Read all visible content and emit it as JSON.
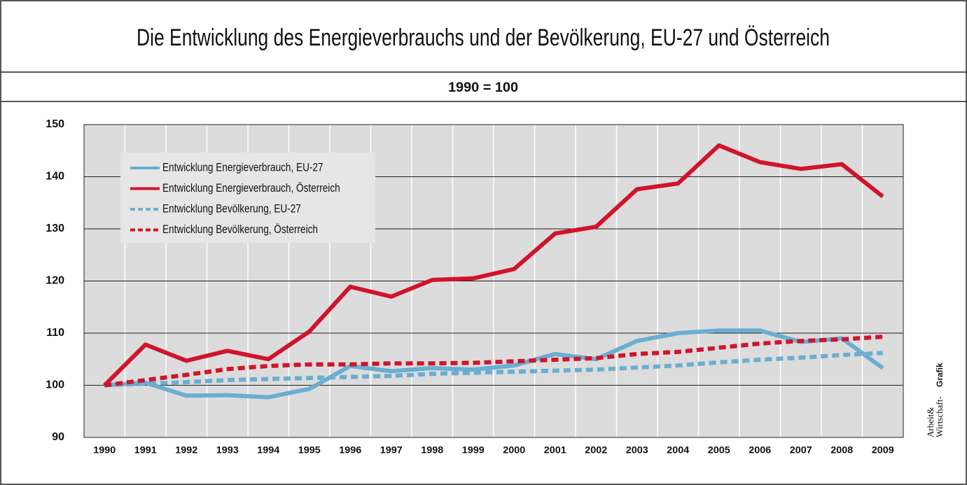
{
  "chart_data": {
    "type": "line",
    "title": "Die Entwicklung des Energieverbrauchs und der Bevölkerung, EU-27 und Österreich",
    "subtitle": "1990 = 100",
    "credit": [
      "Arbeit&",
      "Wirtschaft-",
      "Grafik"
    ],
    "categories": [
      "1990",
      "1991",
      "1992",
      "1993",
      "1994",
      "1995",
      "1996",
      "1997",
      "1998",
      "1999",
      "2000",
      "2001",
      "2002",
      "2003",
      "2004",
      "2005",
      "2006",
      "2007",
      "2008",
      "2009"
    ],
    "ylim": [
      90,
      150
    ],
    "yticks": [
      90,
      100,
      110,
      120,
      130,
      140,
      150
    ],
    "grid": true,
    "legend": "upper left",
    "series": [
      {
        "name": "Entwicklung Energieverbrauch, EU-27",
        "color": "#6aaed0",
        "dashed": false,
        "values": [
          100,
          100.5,
          98,
          98.1,
          97.7,
          99.3,
          103.7,
          102.7,
          103.3,
          103,
          103.8,
          106,
          105,
          108.5,
          110,
          110.5,
          110.5,
          108.3,
          109,
          103.3
        ]
      },
      {
        "name": "Entwicklung Energieverbrauch, Österreich",
        "color": "#d0142c",
        "dashed": false,
        "values": [
          100,
          107.8,
          104.7,
          106.6,
          105,
          110.3,
          118.9,
          117,
          120.2,
          120.5,
          122.3,
          129.1,
          130.4,
          137.6,
          138.7,
          146,
          142.8,
          141.5,
          142.4,
          136.2
        ]
      },
      {
        "name": "Entwicklung Bevölkerung, EU-27",
        "color": "#6aaed0",
        "dashed": true,
        "values": [
          100,
          100.3,
          100.6,
          101,
          101.2,
          101.4,
          101.6,
          101.8,
          102.2,
          102.4,
          102.6,
          102.8,
          103,
          103.4,
          103.8,
          104.4,
          104.9,
          105.3,
          105.8,
          106.2
        ]
      },
      {
        "name": "Entwicklung Bevölkerung, Österreich",
        "color": "#d0142c",
        "dashed": true,
        "values": [
          100,
          101,
          102,
          103.1,
          103.7,
          104,
          104,
          104.2,
          104.2,
          104.3,
          104.6,
          104.9,
          105.2,
          106,
          106.4,
          107.2,
          108,
          108.5,
          108.8,
          109.3
        ]
      }
    ]
  }
}
